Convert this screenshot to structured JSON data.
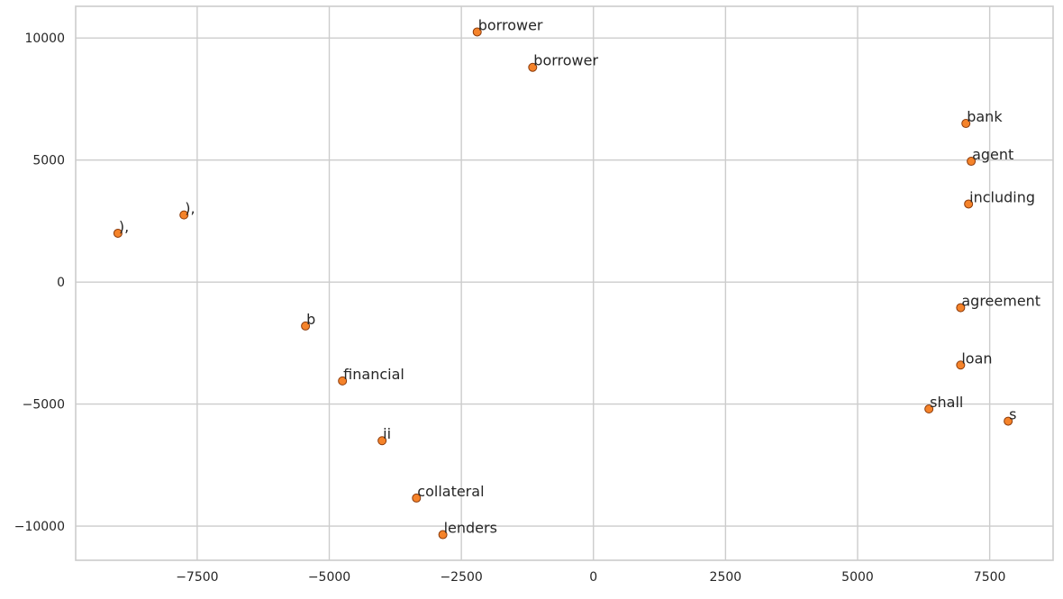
{
  "chart_data": {
    "type": "scatter",
    "title": "",
    "xlabel": "",
    "ylabel": "",
    "xlim": [
      -9800,
      8700
    ],
    "ylim": [
      -11400,
      11300
    ],
    "x_ticks": [
      -7500,
      -5000,
      -2500,
      0,
      2500,
      5000,
      7500
    ],
    "y_ticks": [
      -10000,
      -5000,
      0,
      5000,
      10000
    ],
    "grid": true,
    "point_color": "#f5832a",
    "point_edge_color": "#8b3a0a",
    "points": [
      {
        "label": "borrower",
        "x": -2200,
        "y": 10250
      },
      {
        "label": "borrower",
        "x": -1150,
        "y": 8800
      },
      {
        "label": "bank",
        "x": 7050,
        "y": 6500
      },
      {
        "label": "agent",
        "x": 7150,
        "y": 4950
      },
      {
        "label": "including",
        "x": 7100,
        "y": 3200
      },
      {
        "label": "),",
        "x": -7750,
        "y": 2750
      },
      {
        "label": "),",
        "x": -9000,
        "y": 2000
      },
      {
        "label": "agreement",
        "x": 6950,
        "y": -1050
      },
      {
        "label": "b",
        "x": -5450,
        "y": -1800
      },
      {
        "label": "loan",
        "x": 6950,
        "y": -3400
      },
      {
        "label": "financial",
        "x": -4750,
        "y": -4050
      },
      {
        "label": "shall",
        "x": 6350,
        "y": -5200
      },
      {
        "label": "s",
        "x": 7850,
        "y": -5700
      },
      {
        "label": "ii",
        "x": -4000,
        "y": -6500
      },
      {
        "label": "collateral",
        "x": -3350,
        "y": -8850
      },
      {
        "label": "lenders",
        "x": -2850,
        "y": -10350
      }
    ]
  }
}
